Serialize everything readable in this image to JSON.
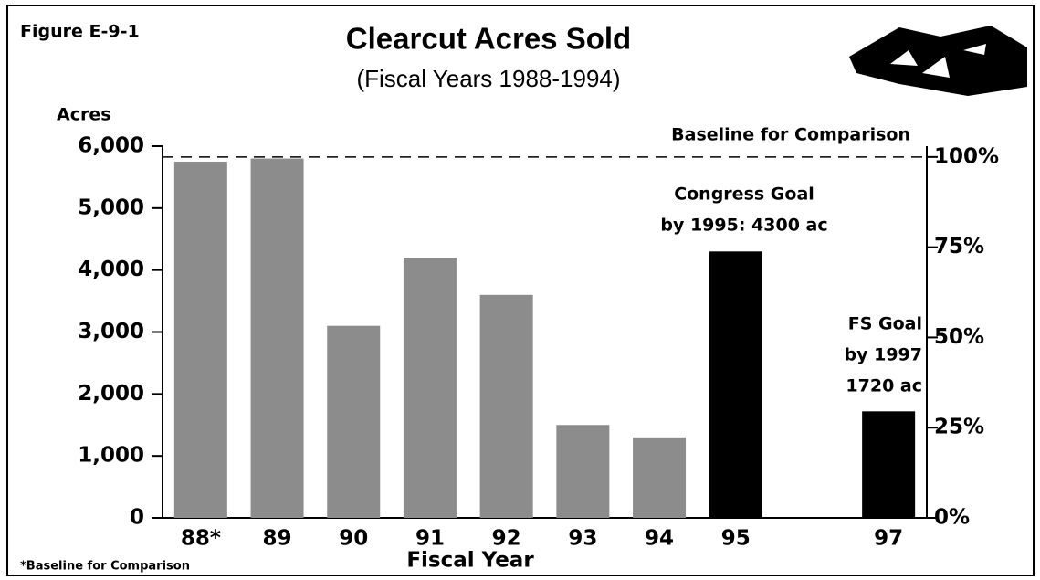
{
  "chart_data": {
    "type": "bar",
    "figure_label": "Figure E-9-1",
    "title": "Clearcut Acres Sold",
    "subtitle": "(Fiscal Years 1988-1994)",
    "y_label": "Acres",
    "x_label": "Fiscal Year",
    "footnote": "*Baseline for Comparison",
    "categories": [
      "88*",
      "89",
      "90",
      "91",
      "92",
      "93",
      "94",
      "95",
      null,
      "97"
    ],
    "values": [
      5750,
      5800,
      3100,
      4200,
      3600,
      1500,
      1300,
      4300,
      null,
      1720
    ],
    "colors": [
      "#8c8c8c",
      "#8c8c8c",
      "#8c8c8c",
      "#8c8c8c",
      "#8c8c8c",
      "#8c8c8c",
      "#8c8c8c",
      "#000000",
      null,
      "#000000"
    ],
    "ylim": [
      0,
      6000
    ],
    "yticks": [
      0,
      {
        "value": 1000,
        "label": "1,000"
      },
      {
        "value": 2000,
        "label": "2,000"
      },
      {
        "value": 3000,
        "label": "3,000"
      },
      {
        "value": 4000,
        "label": "4,000"
      },
      {
        "value": 5000,
        "label": "5,000"
      },
      {
        "value": 6000,
        "label": "6,000"
      }
    ],
    "y2lim": [
      0,
      103
    ],
    "y2ticks": [
      {
        "value": 0,
        "label": "0%"
      },
      {
        "value": 25,
        "label": "25%"
      },
      {
        "value": 50,
        "label": "50%"
      },
      {
        "value": 75,
        "label": "75%"
      },
      {
        "value": 100,
        "label": "100%"
      }
    ],
    "baseline": {
      "label": "Baseline for Comparison",
      "value": 100,
      "axis": "y2"
    },
    "annotations": [
      {
        "lines": [
          "Congress Goal",
          "by 1995: 4300 ac"
        ]
      },
      {
        "lines": [
          "FS Goal",
          "by 1997",
          "1720 ac"
        ]
      }
    ]
  }
}
